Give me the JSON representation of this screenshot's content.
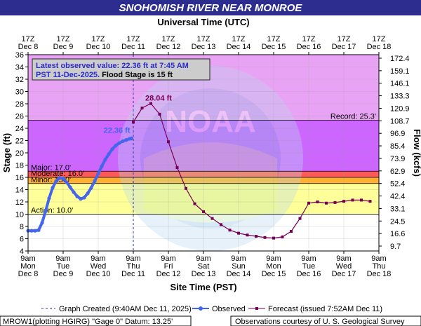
{
  "chart_data": {
    "type": "line",
    "title": "SNOHOMISH RIVER NEAR MONROE",
    "top_axis_title": "Universal Time (UTC)",
    "xlabel": "Site Time (PST)",
    "ylabel": "Stage (ft)",
    "ylabel_right": "Flow (kcfs)",
    "y_range": [
      4,
      36
    ],
    "y_ticks": [
      "4",
      "6",
      "8",
      "10",
      "12",
      "14",
      "16",
      "18",
      "20",
      "22",
      "24",
      "26",
      "28",
      "30",
      "32",
      "34",
      "36"
    ],
    "right_ticks": [
      "9.7",
      "16.6",
      "24.5",
      "33.1",
      "42.4",
      "52.4",
      "62.9",
      "73.9",
      "85.4",
      "96.9",
      "108.7",
      "120.9",
      "133.3",
      "146.1",
      "159.1",
      "172.4"
    ],
    "x_range_days": [
      0,
      10
    ],
    "x_ticks_bottom": [
      {
        "l1": "9am",
        "l2": "Mon",
        "l3": "Dec 8"
      },
      {
        "l1": "9am",
        "l2": "Tue",
        "l3": "Dec 9"
      },
      {
        "l1": "9am",
        "l2": "Wed",
        "l3": "Dec 10"
      },
      {
        "l1": "9am",
        "l2": "Thu",
        "l3": "Dec 11"
      },
      {
        "l1": "9am",
        "l2": "Fri",
        "l3": "Dec 12"
      },
      {
        "l1": "9am",
        "l2": "Sat",
        "l3": "Dec 13"
      },
      {
        "l1": "9am",
        "l2": "Sun",
        "l3": "Dec 14"
      },
      {
        "l1": "9am",
        "l2": "Mon",
        "l3": "Dec 15"
      },
      {
        "l1": "9am",
        "l2": "Tue",
        "l3": "Dec 16"
      },
      {
        "l1": "9am",
        "l2": "Wed",
        "l3": "Dec 17"
      },
      {
        "l1": "9am",
        "l2": "Thu",
        "l3": "Dec 18"
      }
    ],
    "x_ticks_top": [
      {
        "l1": "17Z",
        "l2": "Dec 8"
      },
      {
        "l1": "17Z",
        "l2": "Dec 9"
      },
      {
        "l1": "17Z",
        "l2": "Dec 10"
      },
      {
        "l1": "17Z",
        "l2": "Dec 11"
      },
      {
        "l1": "17Z",
        "l2": "Dec 12"
      },
      {
        "l1": "17Z",
        "l2": "Dec 13"
      },
      {
        "l1": "17Z",
        "l2": "Dec 14"
      },
      {
        "l1": "17Z",
        "l2": "Dec 15"
      },
      {
        "l1": "17Z",
        "l2": "Dec 16"
      },
      {
        "l1": "17Z",
        "l2": "Dec 17"
      },
      {
        "l1": "17Z",
        "l2": "Dec 18"
      }
    ],
    "zones": [
      {
        "name": "Record",
        "from": 25.3,
        "to": 36,
        "color": "#e9a3f5"
      },
      {
        "name": "Major",
        "from": 17,
        "to": 25.3,
        "color": "#cc66ff"
      },
      {
        "name": "Moderate",
        "from": 16,
        "to": 17,
        "color": "#ff5a5a"
      },
      {
        "name": "Minor",
        "from": 15,
        "to": 16,
        "color": "#ffb030"
      },
      {
        "name": "Action",
        "from": 10,
        "to": 15,
        "color": "#ffff99"
      }
    ],
    "thresholds": [
      {
        "label": "Record: 25.3'",
        "value": 25.3
      },
      {
        "label": "Major: 17.0'",
        "value": 17.0
      },
      {
        "label": "Moderate: 16.0'",
        "value": 16.0
      },
      {
        "label": "Minor: 15.0'",
        "value": 15.0
      },
      {
        "label": "Action: 10.0'",
        "value": 10.0
      }
    ],
    "series": [
      {
        "name": "Observed",
        "color": "#4466ee",
        "x": [
          0,
          0.1,
          0.2,
          0.3,
          0.4,
          0.5,
          0.6,
          0.7,
          0.8,
          0.9,
          1.0,
          1.1,
          1.2,
          1.3,
          1.4,
          1.5,
          1.6,
          1.7,
          1.8,
          1.9,
          2.0,
          2.1,
          2.2,
          2.3,
          2.4,
          2.5,
          2.6,
          2.7,
          2.8,
          2.9,
          2.95
        ],
        "values": [
          7.3,
          7.3,
          7.3,
          7.4,
          8.6,
          10.5,
          12.6,
          14.3,
          15.4,
          15.9,
          15.8,
          15.2,
          14.4,
          13.6,
          12.9,
          12.5,
          12.7,
          13.4,
          14.3,
          15.4,
          16.6,
          17.8,
          18.9,
          19.8,
          20.6,
          21.2,
          21.6,
          21.9,
          22.1,
          22.3,
          22.36
        ]
      },
      {
        "name": "Forecast (issued 7:52AM Dec 11)",
        "color": "#770055",
        "x": [
          3.0,
          3.25,
          3.5,
          3.75,
          4.0,
          4.25,
          4.5,
          4.75,
          5.0,
          5.25,
          5.5,
          5.75,
          6.0,
          6.25,
          6.5,
          6.75,
          7.0,
          7.25,
          7.5,
          7.75,
          8.0,
          8.25,
          8.5,
          8.75,
          9.0,
          9.25,
          9.5,
          9.75
        ],
        "values": [
          25.0,
          27.3,
          28.04,
          26.3,
          21.8,
          17.6,
          14.2,
          11.7,
          10.4,
          9.3,
          8.3,
          7.4,
          6.9,
          6.6,
          6.4,
          6.2,
          6.1,
          6.3,
          7.2,
          9.3,
          11.8,
          12.0,
          11.8,
          11.9,
          12.1,
          12.3,
          12.3,
          12.1
        ]
      }
    ],
    "graph_created_day": 3.0,
    "crest_label": "28.04 ft",
    "latest_label": "22.36 ft",
    "annotation_line1": "Latest observed value: 22.36 ft at 7:45 AM",
    "annotation_line2a": "PST 11-Dec-2025.",
    "annotation_line2b": " Flood Stage is 15 ft",
    "legend": {
      "created": "Graph Created (9:40AM Dec 11, 2025)",
      "observed": "Observed",
      "forecast": "Forecast (issued 7:52AM Dec 11)"
    },
    "footer_left": "MROW1(plotting HGIRG) \"Gage 0\" Datum: 13.25'",
    "footer_right": "Observations courtesy of U. S. Geological Survey",
    "colors": {
      "title_bg": "#2d2d90",
      "title_text": "#ffffff",
      "plot_bg": "#ffffff",
      "observed": "#4466ee",
      "forecast": "#770055",
      "created_line": "#3333aa",
      "annotation_bg": "#cccccc",
      "annotation_text": "#2a2ad0"
    }
  }
}
